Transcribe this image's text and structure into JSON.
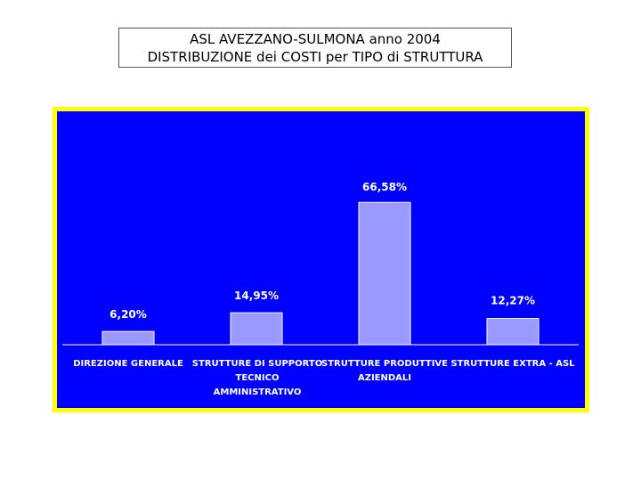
{
  "title": {
    "line1": "ASL AVEZZANO-SULMONA anno 2004",
    "line2": "DISTRIBUZIONE dei COSTI per TIPO di STRUTTURA"
  },
  "colors": {
    "background": "#0000ff",
    "border": "#ffff00",
    "bar": "#9999ff",
    "text": "#ffffff"
  },
  "chart_data": {
    "type": "bar",
    "categories": [
      [
        "DIREZIONE GENERALE"
      ],
      [
        "STRUTTURE DI SUPPORTO",
        "TECNICO",
        "AMMINISTRATIVO"
      ],
      [
        "STRUTTURE PRODUTTIVE",
        "AZIENDALI"
      ],
      [
        "STRUTTURE EXTRA - ASL"
      ]
    ],
    "values": [
      6.2,
      14.95,
      66.58,
      12.27
    ],
    "data_labels": [
      "6,20%",
      "14,95%",
      "66,58%",
      "12,27%"
    ],
    "ylim": [
      0,
      100
    ],
    "grid": false,
    "legend": "none"
  }
}
